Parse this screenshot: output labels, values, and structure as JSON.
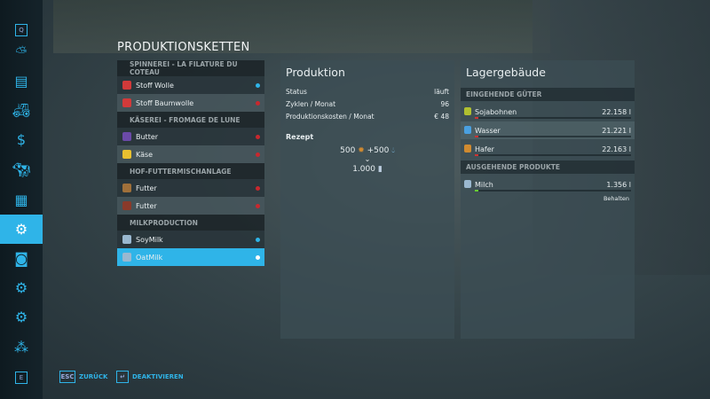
{
  "colors": {
    "accent": "#2fb4e8",
    "status_active": "#2fb4e8",
    "status_inactive": "#c8282e"
  },
  "sidebar": {
    "items": [
      {
        "key": "Q",
        "icon": "q-key-icon"
      },
      {
        "icon": "weather-icon"
      },
      {
        "icon": "stats-icon"
      },
      {
        "icon": "vehicles-icon"
      },
      {
        "icon": "finances-icon"
      },
      {
        "icon": "animals-icon"
      },
      {
        "icon": "contracts-icon"
      },
      {
        "icon": "production-icon",
        "active": true
      },
      {
        "icon": "help-icon"
      },
      {
        "icon": "garage-icon"
      },
      {
        "icon": "settings-icon"
      },
      {
        "icon": "hierarchy-icon"
      },
      {
        "key": "E",
        "icon": "e-key-icon"
      }
    ]
  },
  "title": "PRODUKTIONSKETTEN",
  "chains": [
    {
      "name": "SPINNEREI - LA FILATURE DU COTEAU",
      "items": [
        {
          "label": "Stoff Wolle",
          "status": "active",
          "icon_color": "#d23a3a"
        },
        {
          "label": "Stoff Baumwolle",
          "status": "inactive",
          "icon_color": "#d23a3a"
        }
      ]
    },
    {
      "name": "KÄSEREI - FROMAGE DE LUNE",
      "items": [
        {
          "label": "Butter",
          "status": "inactive",
          "icon_color": "#6b4aa8"
        },
        {
          "label": "Käse",
          "status": "inactive",
          "icon_color": "#e8c030"
        }
      ]
    },
    {
      "name": "HOF-FUTTERMISCHANLAGE",
      "items": [
        {
          "label": "Futter",
          "status": "inactive",
          "icon_color": "#a0703a"
        },
        {
          "label": "Futter",
          "status": "inactive",
          "icon_color": "#8a3a2a"
        }
      ]
    },
    {
      "name": "MILKPRODUCTION",
      "items": [
        {
          "label": "SoyMilk",
          "status": "active",
          "icon_color": "#9ab8d0"
        },
        {
          "label": "OatMilk",
          "status": "active",
          "selected": true,
          "icon_color": "#9ab8d0"
        }
      ]
    }
  ],
  "production": {
    "title": "Produktion",
    "rows": [
      {
        "label": "Status",
        "value": "läuft"
      },
      {
        "label": "Zyklen / Monat",
        "value": "96"
      },
      {
        "label": "Produktionskosten / Monat",
        "value": "€ 48"
      }
    ],
    "recipe_label": "Rezept",
    "input1": "500",
    "input2": "+500",
    "output": "1.000"
  },
  "storage": {
    "title": "Lagergebäude",
    "incoming_label": "EINGEHENDE GÜTER",
    "incoming": [
      {
        "label": "Sojabohnen",
        "value": "22.158 l",
        "fill": 0.02,
        "icon_color": "#b0c030"
      },
      {
        "label": "Wasser",
        "value": "21.221 l",
        "fill": 0.02,
        "icon_color": "#4aa0e0"
      },
      {
        "label": "Hafer",
        "value": "22.163 l",
        "fill": 0.02,
        "icon_color": "#d08a30"
      }
    ],
    "outgoing_label": "AUSGEHENDE PRODUKTE",
    "outgoing": [
      {
        "label": "Milch",
        "value": "1.356 l",
        "fill": 0.02,
        "mode": "Behalten"
      }
    ]
  },
  "footer": {
    "back_key": "ESC",
    "back_label": "ZURÜCK",
    "toggle_key": "↵",
    "toggle_label": "DEAKTIVIEREN"
  }
}
